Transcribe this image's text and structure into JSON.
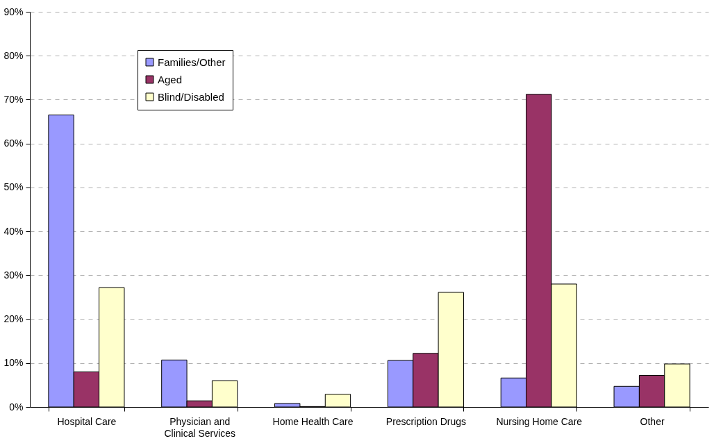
{
  "chart_data": {
    "type": "bar",
    "categories": [
      "Hospital Care",
      "Physician and Clinical Services",
      "Home Health Care",
      "Prescription Drugs",
      "Nursing Home Care",
      "Other"
    ],
    "series": [
      {
        "name": "Families/Other",
        "color": "#9999ff",
        "values": [
          66.5,
          10.7,
          0.8,
          10.6,
          6.6,
          4.7
        ]
      },
      {
        "name": "Aged",
        "color": "#993366",
        "values": [
          8.0,
          1.4,
          0.1,
          12.2,
          71.2,
          7.2
        ]
      },
      {
        "name": "Blind/Disabled",
        "color": "#ffffcc",
        "values": [
          27.2,
          6.0,
          2.9,
          26.1,
          28.0,
          9.8
        ]
      }
    ],
    "ylim": [
      0,
      90
    ],
    "yticks": [
      {
        "value": 0,
        "label": "0%"
      },
      {
        "value": 10,
        "label": "10%"
      },
      {
        "value": 20,
        "label": "20%"
      },
      {
        "value": 30,
        "label": "30%"
      },
      {
        "value": 40,
        "label": "40%"
      },
      {
        "value": 50,
        "label": "50%"
      },
      {
        "value": 60,
        "label": "60%"
      },
      {
        "value": 70,
        "label": "70%"
      },
      {
        "value": 80,
        "label": "80%"
      },
      {
        "value": 90,
        "label": "90%"
      }
    ],
    "grid": "y",
    "legend": "top left"
  }
}
